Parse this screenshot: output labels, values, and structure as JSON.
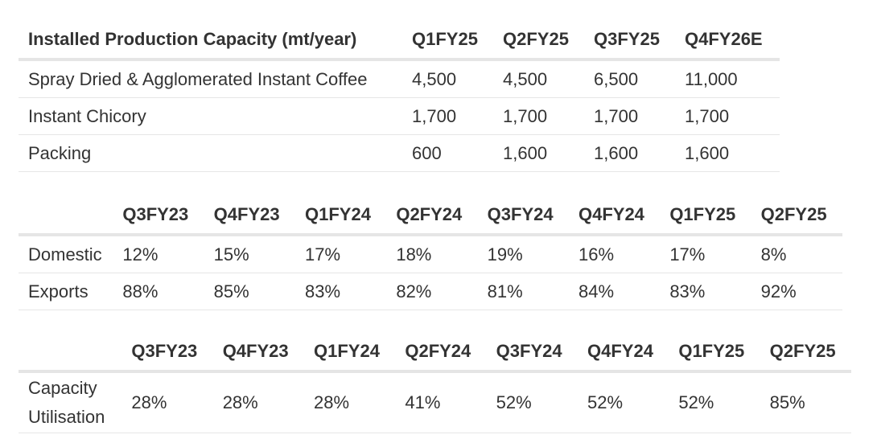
{
  "capacity_table": {
    "header": [
      "Installed Production Capacity (mt/year)",
      "Q1FY25",
      "Q2FY25",
      "Q3FY25",
      "Q4FY26E"
    ],
    "rows": [
      [
        "Spray Dried & Agglomerated Instant Coffee",
        "4,500",
        "4,500",
        "6,500",
        "11,000"
      ],
      [
        "Instant Chicory",
        "1,700",
        "1,700",
        "1,700",
        "1,700"
      ],
      [
        "Packing",
        "600",
        "1,600",
        "1,600",
        "1,600"
      ]
    ]
  },
  "sales_mix_table": {
    "header": [
      "",
      "Q3FY23",
      "Q4FY23",
      "Q1FY24",
      "Q2FY24",
      "Q3FY24",
      "Q4FY24",
      "Q1FY25",
      "Q2FY25"
    ],
    "rows": [
      [
        "Domestic",
        "12%",
        "15%",
        "17%",
        "18%",
        "19%",
        "16%",
        "17%",
        "8%"
      ],
      [
        "Exports",
        "88%",
        "85%",
        "83%",
        "82%",
        "81%",
        "84%",
        "83%",
        "92%"
      ]
    ]
  },
  "utilisation_table": {
    "header": [
      "",
      "Q3FY23",
      "Q4FY23",
      "Q1FY24",
      "Q2FY24",
      "Q3FY24",
      "Q4FY24",
      "Q1FY25",
      "Q2FY25"
    ],
    "rows": [
      [
        "Capacity Utilisation",
        "28%",
        "28%",
        "28%",
        "41%",
        "52%",
        "52%",
        "52%",
        "85%"
      ]
    ]
  }
}
